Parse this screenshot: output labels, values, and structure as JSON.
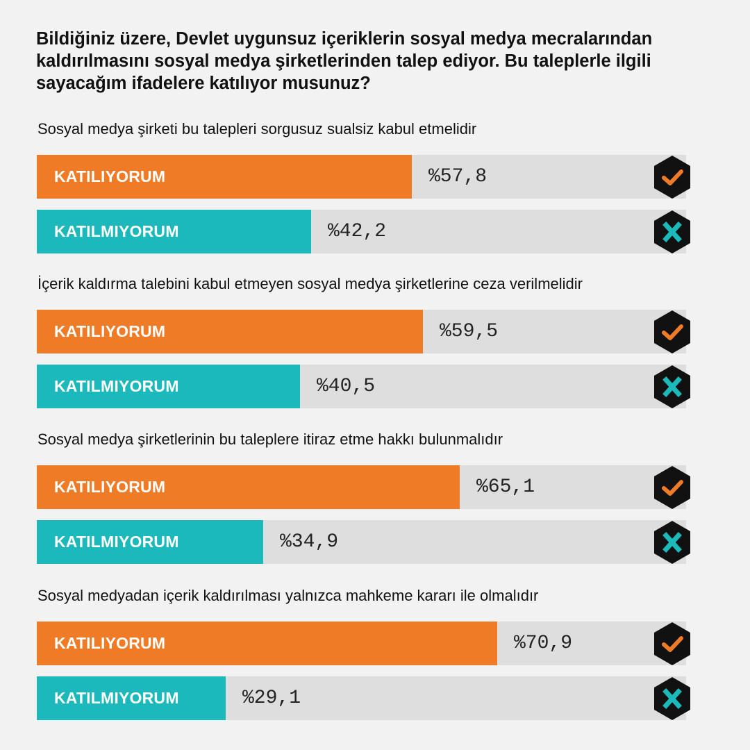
{
  "title": "Bildiğiniz üzere, Devlet uygunsuz içeriklerin sosyal medya mecralarından kaldırılmasını sosyal medya şirketlerinden talep ediyor. Bu taleplerle ilgili sayacağım ifadelere katılıyor musunuz?",
  "colors": {
    "agree": "#f07b27",
    "disagree": "#1bb9bb",
    "track": "#dedede",
    "badge": "#111111"
  },
  "icons": {
    "agree": "check-icon",
    "disagree": "x-icon"
  },
  "chart_data": {
    "type": "bar",
    "orientation": "horizontal",
    "xlim": [
      0,
      100
    ],
    "value_prefix": "%",
    "categories": [
      "Sosyal medya şirketi bu talepleri sorgusuz sualsiz kabul etmelidir",
      "İçerik kaldırma talebini kabul etmeyen sosyal medya şirketlerine ceza verilmelidir",
      "Sosyal medya şirketlerinin bu taleplere itiraz etme hakkı bulunmalıdır",
      "Sosyal medyadan içerik kaldırılması yalnızca mahkeme kararı ile olmalıdır"
    ],
    "series": [
      {
        "name": "KATILIYORUM",
        "values": [
          57.8,
          59.5,
          65.1,
          70.9
        ],
        "labels": [
          "%57,8",
          "%59,5",
          "%65,1",
          "%70,9"
        ]
      },
      {
        "name": "KATILMIYORUM",
        "values": [
          42.2,
          40.5,
          34.9,
          29.1
        ],
        "labels": [
          "%42,2",
          "%40,5",
          "%34,9",
          "%29,1"
        ]
      }
    ]
  }
}
